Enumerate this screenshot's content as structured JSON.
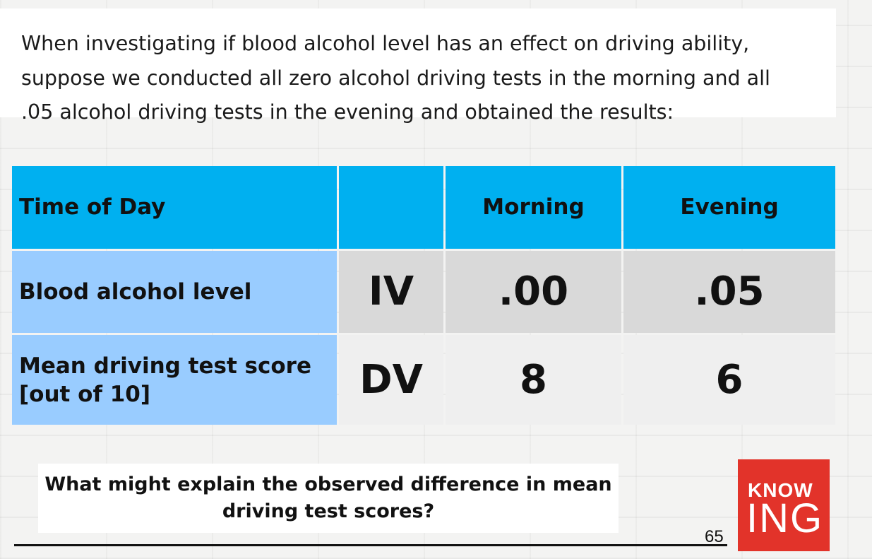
{
  "intro": {
    "text": "When investigating if blood alcohol level has an effect on driving ability, suppose we conducted all zero alcohol driving tests in the morning and all .05 alcohol driving tests in the evening and obtained the results:"
  },
  "table": {
    "header": {
      "label": "Time of Day",
      "var": "",
      "col1": "Morning",
      "col2": "Evening"
    },
    "rows": [
      {
        "label": "Blood alcohol level",
        "var": "IV",
        "col1": ".00",
        "col2": ".05"
      },
      {
        "label": "Mean driving test score [out of 10]",
        "var": "DV",
        "col1": "8",
        "col2": "6"
      }
    ]
  },
  "question": "What might explain the observed difference in mean driving test scores?",
  "page_number": "65",
  "logo": {
    "top": "KNOW",
    "bottom": "ING"
  },
  "colors": {
    "header_blue": "#00b0f0",
    "label_blue": "#99ccff",
    "logo_red": "#e2332a"
  }
}
